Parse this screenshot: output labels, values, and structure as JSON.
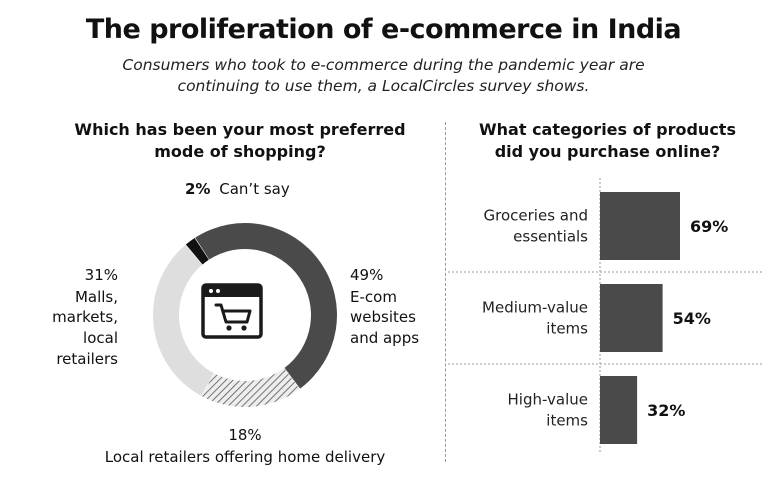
{
  "title": "The proliferation of e-commerce in India",
  "subtitle": [
    "Consumers who took to e-commerce during the pandemic year are",
    "continuing to use them, a LocalCircles survey shows."
  ],
  "colors": {
    "dark": "#4a4a4a",
    "light": "#dedede",
    "black": "#111111",
    "hatch_bg": "#ededed",
    "hatch_line": "#555555"
  },
  "icon": "shopping-cart-on-browser-icon",
  "chart_data": [
    {
      "type": "pie",
      "title": [
        "Which has been your most preferred",
        "mode of shopping?"
      ],
      "slices": [
        {
          "pct_text": "49%",
          "value": 49,
          "label": [
            "E-com",
            "websites",
            "and apps"
          ],
          "style": "dark"
        },
        {
          "pct_text": "18%",
          "value": 18,
          "label": [
            "Local retailers offering home delivery"
          ],
          "style": "hatched"
        },
        {
          "pct_text": "31%",
          "value": 31,
          "label": [
            "Malls,",
            "markets,",
            "local",
            "retailers"
          ],
          "style": "light"
        },
        {
          "pct_text": "2%",
          "value": 2,
          "label": [
            "Can’t say"
          ],
          "style": "black"
        }
      ]
    },
    {
      "type": "bar",
      "orientation": "horizontal",
      "title": [
        "What categories of products",
        "did you purchase online?"
      ],
      "categories": [
        [
          "Groceries and",
          "essentials"
        ],
        [
          "Medium-value",
          "items"
        ],
        [
          "High-value",
          "items"
        ]
      ],
      "values": [
        69,
        54,
        32
      ],
      "value_labels": [
        "69%",
        "54%",
        "32%"
      ],
      "grid": false
    }
  ]
}
